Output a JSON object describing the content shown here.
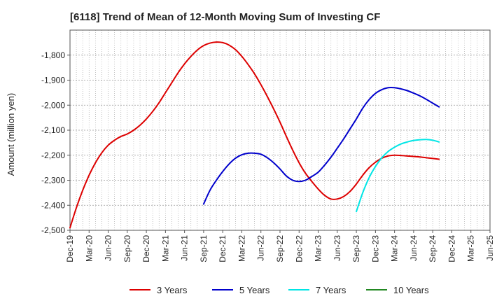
{
  "chart_data": {
    "type": "line",
    "title": "[6118]  Trend of Mean of 12-Month Moving Sum of Investing CF",
    "xlabel": "",
    "ylabel": "Amount (million yen)",
    "ylim": [
      -2500,
      -1700
    ],
    "yticks": [
      -2500,
      -2400,
      -2300,
      -2200,
      -2100,
      -2000,
      -1900,
      -1800
    ],
    "ytick_labels": [
      "-2,500",
      "-2,400",
      "-2,300",
      "-2,200",
      "-2,100",
      "-2,000",
      "-1,900",
      "-1,800"
    ],
    "x_range_months": [
      0,
      66
    ],
    "x_ticks": [
      {
        "m": 0,
        "label": "Dec-19"
      },
      {
        "m": 3,
        "label": "Mar-20"
      },
      {
        "m": 6,
        "label": "Jun-20"
      },
      {
        "m": 9,
        "label": "Sep-20"
      },
      {
        "m": 12,
        "label": "Dec-20"
      },
      {
        "m": 15,
        "label": "Mar-21"
      },
      {
        "m": 18,
        "label": "Jun-21"
      },
      {
        "m": 21,
        "label": "Sep-21"
      },
      {
        "m": 24,
        "label": "Dec-21"
      },
      {
        "m": 27,
        "label": "Mar-22"
      },
      {
        "m": 30,
        "label": "Jun-22"
      },
      {
        "m": 33,
        "label": "Sep-22"
      },
      {
        "m": 36,
        "label": "Dec-22"
      },
      {
        "m": 39,
        "label": "Mar-23"
      },
      {
        "m": 42,
        "label": "Jun-23"
      },
      {
        "m": 45,
        "label": "Sep-23"
      },
      {
        "m": 48,
        "label": "Dec-23"
      },
      {
        "m": 51,
        "label": "Mar-24"
      },
      {
        "m": 54,
        "label": "Jun-24"
      },
      {
        "m": 57,
        "label": "Sep-24"
      },
      {
        "m": 60,
        "label": "Dec-24"
      },
      {
        "m": 63,
        "label": "Mar-25"
      },
      {
        "m": 66,
        "label": "Jun-25"
      }
    ],
    "grid": true,
    "legend_position": "bottom",
    "series": [
      {
        "name": "3 Years",
        "color": "#dd0000",
        "points": [
          [
            0,
            -2490
          ],
          [
            1,
            -2410
          ],
          [
            2,
            -2340
          ],
          [
            3,
            -2280
          ],
          [
            4,
            -2230
          ],
          [
            5,
            -2190
          ],
          [
            6,
            -2160
          ],
          [
            7,
            -2140
          ],
          [
            8,
            -2125
          ],
          [
            9,
            -2115
          ],
          [
            10,
            -2100
          ],
          [
            11,
            -2080
          ],
          [
            12,
            -2055
          ],
          [
            13,
            -2025
          ],
          [
            14,
            -1990
          ],
          [
            15,
            -1950
          ],
          [
            16,
            -1910
          ],
          [
            17,
            -1870
          ],
          [
            18,
            -1835
          ],
          [
            19,
            -1805
          ],
          [
            20,
            -1780
          ],
          [
            21,
            -1762
          ],
          [
            22,
            -1752
          ],
          [
            23,
            -1748
          ],
          [
            24,
            -1750
          ],
          [
            25,
            -1760
          ],
          [
            26,
            -1778
          ],
          [
            27,
            -1805
          ],
          [
            28,
            -1838
          ],
          [
            29,
            -1875
          ],
          [
            30,
            -1918
          ],
          [
            31,
            -1965
          ],
          [
            32,
            -2015
          ],
          [
            33,
            -2068
          ],
          [
            34,
            -2125
          ],
          [
            35,
            -2180
          ],
          [
            36,
            -2230
          ],
          [
            37,
            -2272
          ],
          [
            38,
            -2305
          ],
          [
            39,
            -2335
          ],
          [
            40,
            -2360
          ],
          [
            41,
            -2375
          ],
          [
            42,
            -2375
          ],
          [
            43,
            -2365
          ],
          [
            44,
            -2345
          ],
          [
            45,
            -2315
          ],
          [
            46,
            -2280
          ],
          [
            47,
            -2250
          ],
          [
            48,
            -2228
          ],
          [
            49,
            -2212
          ],
          [
            50,
            -2203
          ],
          [
            51,
            -2200
          ],
          [
            52,
            -2201
          ],
          [
            53,
            -2203
          ],
          [
            54,
            -2205
          ],
          [
            55,
            -2207
          ],
          [
            56,
            -2210
          ],
          [
            57,
            -2213
          ],
          [
            58,
            -2216
          ]
        ]
      },
      {
        "name": "5 Years",
        "color": "#0000cc",
        "points": [
          [
            21,
            -2395
          ],
          [
            22,
            -2340
          ],
          [
            23,
            -2300
          ],
          [
            24,
            -2265
          ],
          [
            25,
            -2235
          ],
          [
            26,
            -2212
          ],
          [
            27,
            -2198
          ],
          [
            28,
            -2192
          ],
          [
            29,
            -2192
          ],
          [
            30,
            -2196
          ],
          [
            31,
            -2210
          ],
          [
            32,
            -2230
          ],
          [
            33,
            -2255
          ],
          [
            34,
            -2283
          ],
          [
            35,
            -2300
          ],
          [
            36,
            -2305
          ],
          [
            37,
            -2300
          ],
          [
            38,
            -2285
          ],
          [
            39,
            -2268
          ],
          [
            40,
            -2240
          ],
          [
            41,
            -2208
          ],
          [
            42,
            -2172
          ],
          [
            43,
            -2135
          ],
          [
            44,
            -2095
          ],
          [
            45,
            -2055
          ],
          [
            46,
            -2012
          ],
          [
            47,
            -1978
          ],
          [
            48,
            -1953
          ],
          [
            49,
            -1938
          ],
          [
            50,
            -1930
          ],
          [
            51,
            -1930
          ],
          [
            52,
            -1935
          ],
          [
            53,
            -1942
          ],
          [
            54,
            -1952
          ],
          [
            55,
            -1963
          ],
          [
            56,
            -1977
          ],
          [
            57,
            -1992
          ],
          [
            58,
            -2007
          ]
        ]
      },
      {
        "name": "7 Years",
        "color": "#00e5e5",
        "points": [
          [
            45,
            -2425
          ],
          [
            46,
            -2350
          ],
          [
            47,
            -2290
          ],
          [
            48,
            -2245
          ],
          [
            49,
            -2210
          ],
          [
            50,
            -2185
          ],
          [
            51,
            -2168
          ],
          [
            52,
            -2155
          ],
          [
            53,
            -2147
          ],
          [
            54,
            -2141
          ],
          [
            55,
            -2138
          ],
          [
            56,
            -2137
          ],
          [
            57,
            -2140
          ],
          [
            58,
            -2147
          ]
        ]
      },
      {
        "name": "10 Years",
        "color": "#228822",
        "points": []
      }
    ]
  }
}
